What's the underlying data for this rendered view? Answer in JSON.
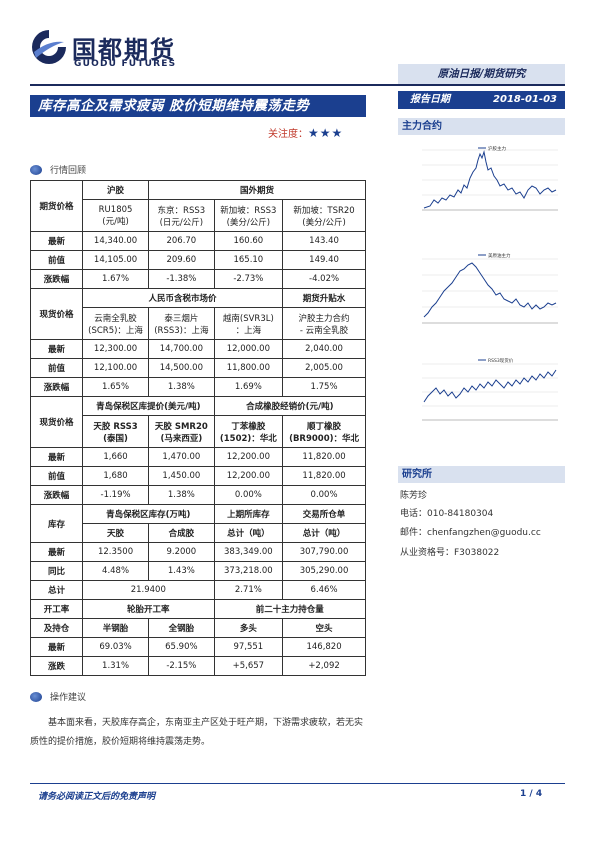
{
  "header": {
    "logo_cn": "国都期货",
    "logo_en": "GUODU FUTURES",
    "category": "原油日报/期货研究",
    "title": "库存高企及需求疲弱 胶价短期维持震荡走势",
    "date_label": "报告日期",
    "date_value": "2018-01-03",
    "attention_label": "关注度：",
    "attention_stars": "★★★"
  },
  "sections": {
    "market_review": "行情回顾",
    "operation": "操作建议"
  },
  "table": {
    "g1": {
      "h1": "沪胶",
      "h2": "国外期货",
      "sub": [
        "RU1805\n(元/吨)",
        "东京：RSS3\n(日元/公斤)",
        "新加坡：RSS3\n(美分/公斤)",
        "新加坡：TSR20\n(美分/公斤)"
      ],
      "sub_a": [
        "RU1805",
        "东京：RSS3",
        "新加坡：RSS3",
        "新加坡：TSR20"
      ],
      "sub_b": [
        "(元/吨)",
        "(日元/公斤)",
        "(美分/公斤)",
        "(美分/公斤)"
      ],
      "label": "期货价格",
      "rows": [
        {
          "label": "最新",
          "v": [
            "14,340.00",
            "206.70",
            "160.60",
            "143.40"
          ]
        },
        {
          "label": "前值",
          "v": [
            "14,105.00",
            "209.60",
            "165.10",
            "149.40"
          ]
        },
        {
          "label": "涨跌幅",
          "v": [
            "1.67%",
            "-1.38%",
            "-2.73%",
            "-4.02%"
          ]
        }
      ]
    },
    "g2": {
      "h1": "人民币含税市场价",
      "h2": "期货升贴水",
      "sub_a": [
        "云南全乳胶",
        "泰三烟片",
        "越南(SVR3L)",
        "沪胶主力合约"
      ],
      "sub_b": [
        "(SCR5)：上海",
        "(RSS3)：上海",
        "：上海",
        "- 云南全乳胶"
      ],
      "label": "现货价格",
      "rows": [
        {
          "label": "最新",
          "v": [
            "12,300.00",
            "14,700.00",
            "12,000.00",
            "2,040.00"
          ]
        },
        {
          "label": "前值",
          "v": [
            "12,100.00",
            "14,500.00",
            "11,800.00",
            "2,005.00"
          ]
        },
        {
          "label": "涨跌幅",
          "v": [
            "1.65%",
            "1.38%",
            "1.69%",
            "1.75%"
          ]
        }
      ]
    },
    "g3": {
      "h1": "青岛保税区库提价(美元/吨)",
      "h2": "合成橡胶经销价(元/吨)",
      "sub_a": [
        "天胶 RSS3",
        "天胶 SMR20",
        "丁苯橡胶",
        "顺丁橡胶"
      ],
      "sub_b": [
        "(泰国)",
        "(马来西亚)",
        "(1502)：华北",
        "(BR9000)：华北"
      ],
      "label": "现货价格",
      "rows": [
        {
          "label": "最新",
          "v": [
            "1,660",
            "1,470.00",
            "12,200.00",
            "11,820.00"
          ]
        },
        {
          "label": "前值",
          "v": [
            "1,680",
            "1,450.00",
            "12,200.00",
            "11,820.00"
          ]
        },
        {
          "label": "涨跌幅",
          "v": [
            "-1.19%",
            "1.38%",
            "0.00%",
            "0.00%"
          ]
        }
      ]
    },
    "g4": {
      "h1": "青岛保税区库存(万吨)",
      "h2": "上期所库存",
      "h3": "交易所仓单",
      "sub": [
        "天胶",
        "合成胶",
        "总计（吨）",
        "总计（吨）"
      ],
      "label": "库存",
      "rows": [
        {
          "label": "最新",
          "v": [
            "12.3500",
            "9.2000",
            "383,349.00",
            "307,790.00"
          ]
        },
        {
          "label": "同比",
          "v": [
            "4.48%",
            "1.43%",
            "373,218.00",
            "305,290.00"
          ]
        }
      ],
      "total_label": "总计",
      "total_v": [
        "21.9400",
        "2.71%",
        "6.46%"
      ]
    },
    "g5": {
      "label_a": "开工率",
      "label_b": "及持仓",
      "h1": "轮胎开工率",
      "h2": "前二十主力持仓量",
      "sub": [
        "半钢胎",
        "全钢胎",
        "多头",
        "空头"
      ],
      "rows": [
        {
          "label": "最新",
          "v": [
            "69.03%",
            "65.90%",
            "97,551",
            "146,820"
          ]
        },
        {
          "label": "涨跌",
          "v": [
            "1.31%",
            "-2.15%",
            "+5,657",
            "+2,092"
          ]
        }
      ]
    }
  },
  "operation_text": "基本面来看，天胶库存高企，东南亚主产区处于旺产期，下游需求疲软，若无实质性的提价措施，胶价短期将维持震荡走势。",
  "right_panel": {
    "contract_head": "主力合约",
    "chart1_legend": "沪胶主力",
    "chart2_legend": "美原油主力",
    "chart3_legend": "RSS3现货价",
    "institute_head": "研究所",
    "researcher": "陈芳珍",
    "phone": "电话：010-84180304",
    "email": "邮件：chenfangzhen@guodu.cc",
    "license": "从业资格号：F3038022"
  },
  "footer": {
    "disclaimer": "请务必阅读正文后的免责声明",
    "page": "1 / 4"
  },
  "colors": {
    "brand": "#1b3f8f",
    "brand_dark": "#1b2a5c",
    "light_band": "#d9e1ef"
  }
}
